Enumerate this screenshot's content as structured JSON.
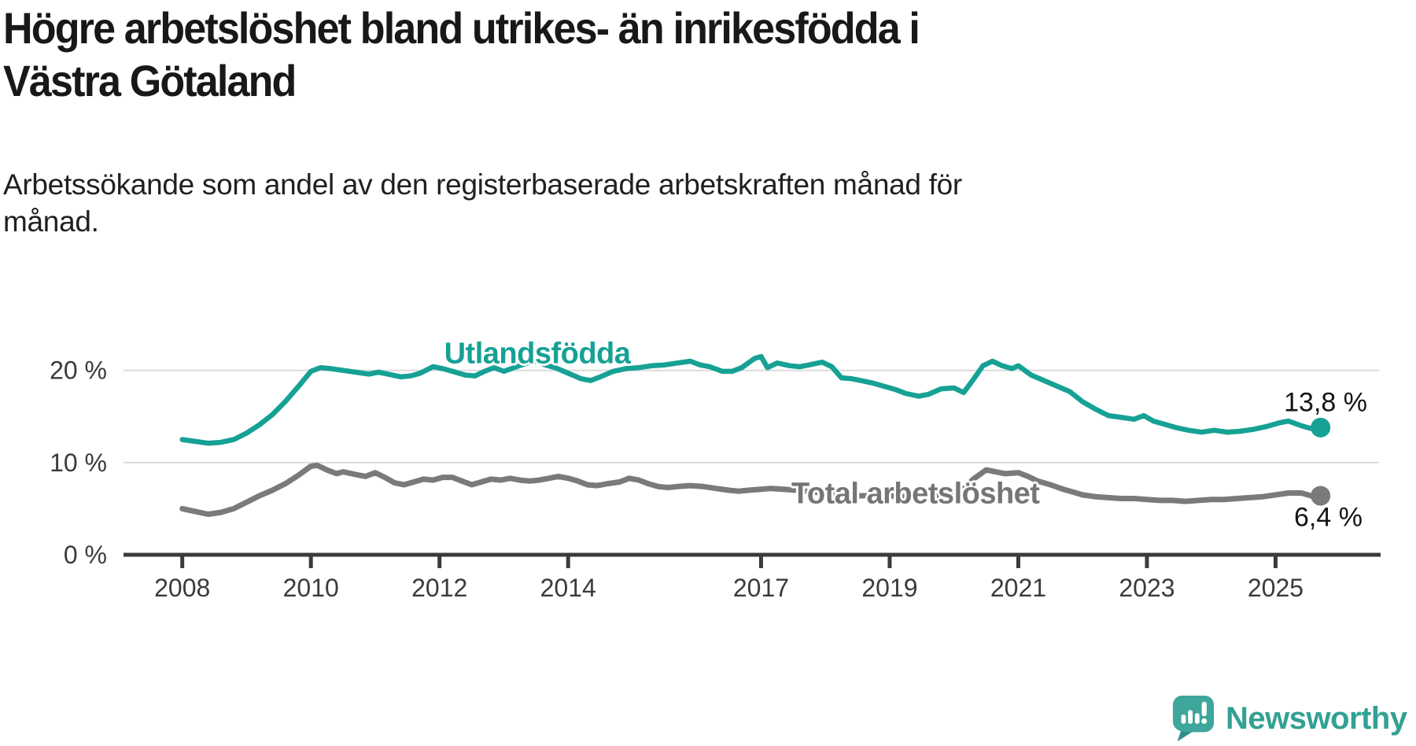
{
  "header": {
    "title_lines": [
      "Högre arbetslöshet bland utrikes- än inrikesfödda i",
      "Västra Götaland"
    ],
    "subtitle_lines": [
      "Arbetssökande som andel av den registerbaserade arbetskraften månad för",
      "månad."
    ]
  },
  "chart_data": {
    "type": "line",
    "title": "Högre arbetslöshet bland utrikes- än inrikesfödda i Västra Götaland",
    "subtitle": "Arbetssökande som andel av den registerbaserade arbetskraften månad för månad.",
    "unit": "%",
    "grid": true,
    "legend_position": "inline-labels",
    "x_axis": {
      "range": [
        2007.1,
        2026.6
      ],
      "ticks": [
        {
          "year": 2008,
          "label": "2008"
        },
        {
          "year": 2010,
          "label": "2010"
        },
        {
          "year": 2012,
          "label": "2012"
        },
        {
          "year": 2014,
          "label": "2014"
        },
        {
          "year": 2017,
          "label": "2017"
        },
        {
          "year": 2019,
          "label": "2019"
        },
        {
          "year": 2021,
          "label": "2021"
        },
        {
          "year": 2023,
          "label": "2023"
        },
        {
          "year": 2025,
          "label": "2025"
        }
      ]
    },
    "y_axis": {
      "range": [
        0,
        22.5
      ],
      "gridlines": [
        10,
        20
      ],
      "ticks": [
        {
          "value": 20,
          "label": "20 %"
        },
        {
          "value": 10,
          "label": "10 %"
        },
        {
          "value": 0,
          "label": "0 %"
        }
      ]
    },
    "series": [
      {
        "name": "Utlandsfödda",
        "color": "#16a195",
        "end_value": 13.8,
        "end_label": "13,8 %",
        "points": [
          [
            2008,
            12.5
          ],
          [
            2008.2,
            12.3
          ],
          [
            2008.4,
            12.1
          ],
          [
            2008.6,
            12.2
          ],
          [
            2008.8,
            12.5
          ],
          [
            2009,
            13.2
          ],
          [
            2009.2,
            14.1
          ],
          [
            2009.4,
            15.2
          ],
          [
            2009.6,
            16.6
          ],
          [
            2009.8,
            18.2
          ],
          [
            2010,
            19.9
          ],
          [
            2010.15,
            20.3
          ],
          [
            2010.3,
            20.2
          ],
          [
            2010.5,
            20
          ],
          [
            2010.7,
            19.8
          ],
          [
            2010.9,
            19.6
          ],
          [
            2011.05,
            19.8
          ],
          [
            2011.2,
            19.6
          ],
          [
            2011.4,
            19.3
          ],
          [
            2011.55,
            19.4
          ],
          [
            2011.7,
            19.7
          ],
          [
            2011.9,
            20.4
          ],
          [
            2012.05,
            20.2
          ],
          [
            2012.2,
            19.9
          ],
          [
            2012.4,
            19.5
          ],
          [
            2012.55,
            19.4
          ],
          [
            2012.7,
            19.9
          ],
          [
            2012.85,
            20.3
          ],
          [
            2013,
            19.9
          ],
          [
            2013.2,
            20.4
          ],
          [
            2013.4,
            20.9
          ],
          [
            2013.5,
            21
          ],
          [
            2013.65,
            20.6
          ],
          [
            2013.8,
            20.3
          ],
          [
            2014,
            19.7
          ],
          [
            2014.2,
            19.1
          ],
          [
            2014.35,
            18.9
          ],
          [
            2014.5,
            19.3
          ],
          [
            2014.7,
            19.9
          ],
          [
            2014.9,
            20.2
          ],
          [
            2015.1,
            20.3
          ],
          [
            2015.3,
            20.5
          ],
          [
            2015.5,
            20.6
          ],
          [
            2015.7,
            20.8
          ],
          [
            2015.9,
            21
          ],
          [
            2016.05,
            20.6
          ],
          [
            2016.2,
            20.4
          ],
          [
            2016.4,
            19.9
          ],
          [
            2016.55,
            19.9
          ],
          [
            2016.7,
            20.3
          ],
          [
            2016.9,
            21.3
          ],
          [
            2017,
            21.5
          ],
          [
            2017.1,
            20.3
          ],
          [
            2017.25,
            20.8
          ],
          [
            2017.45,
            20.5
          ],
          [
            2017.6,
            20.4
          ],
          [
            2017.75,
            20.6
          ],
          [
            2017.95,
            20.9
          ],
          [
            2018.1,
            20.4
          ],
          [
            2018.25,
            19.2
          ],
          [
            2018.4,
            19.1
          ],
          [
            2018.55,
            18.9
          ],
          [
            2018.75,
            18.6
          ],
          [
            2018.95,
            18.2
          ],
          [
            2019.1,
            17.9
          ],
          [
            2019.25,
            17.5
          ],
          [
            2019.45,
            17.2
          ],
          [
            2019.6,
            17.4
          ],
          [
            2019.8,
            18
          ],
          [
            2020,
            18.1
          ],
          [
            2020.15,
            17.6
          ],
          [
            2020.3,
            19
          ],
          [
            2020.45,
            20.5
          ],
          [
            2020.6,
            21
          ],
          [
            2020.75,
            20.5
          ],
          [
            2020.9,
            20.2
          ],
          [
            2021,
            20.5
          ],
          [
            2021.2,
            19.5
          ],
          [
            2021.4,
            18.9
          ],
          [
            2021.6,
            18.3
          ],
          [
            2021.8,
            17.7
          ],
          [
            2022,
            16.6
          ],
          [
            2022.2,
            15.8
          ],
          [
            2022.4,
            15.1
          ],
          [
            2022.6,
            14.9
          ],
          [
            2022.8,
            14.7
          ],
          [
            2022.95,
            15.1
          ],
          [
            2023.1,
            14.5
          ],
          [
            2023.3,
            14.1
          ],
          [
            2023.45,
            13.8
          ],
          [
            2023.65,
            13.5
          ],
          [
            2023.85,
            13.3
          ],
          [
            2024.05,
            13.5
          ],
          [
            2024.25,
            13.3
          ],
          [
            2024.45,
            13.4
          ],
          [
            2024.65,
            13.6
          ],
          [
            2024.85,
            13.9
          ],
          [
            2025.05,
            14.3
          ],
          [
            2025.2,
            14.5
          ],
          [
            2025.4,
            14
          ],
          [
            2025.55,
            13.7
          ],
          [
            2025.7,
            13.8
          ]
        ]
      },
      {
        "name": "Total arbetslöshet",
        "color": "#7a7a7a",
        "end_value": 6.4,
        "end_label": "6,4 %",
        "points": [
          [
            2008,
            5
          ],
          [
            2008.2,
            4.7
          ],
          [
            2008.4,
            4.4
          ],
          [
            2008.6,
            4.6
          ],
          [
            2008.8,
            5
          ],
          [
            2009,
            5.7
          ],
          [
            2009.2,
            6.4
          ],
          [
            2009.4,
            7
          ],
          [
            2009.6,
            7.7
          ],
          [
            2009.8,
            8.6
          ],
          [
            2010,
            9.6
          ],
          [
            2010.1,
            9.7
          ],
          [
            2010.25,
            9.2
          ],
          [
            2010.4,
            8.8
          ],
          [
            2010.5,
            9
          ],
          [
            2010.7,
            8.7
          ],
          [
            2010.85,
            8.5
          ],
          [
            2011,
            8.9
          ],
          [
            2011.15,
            8.4
          ],
          [
            2011.3,
            7.8
          ],
          [
            2011.45,
            7.6
          ],
          [
            2011.6,
            7.9
          ],
          [
            2011.75,
            8.2
          ],
          [
            2011.9,
            8.1
          ],
          [
            2012.05,
            8.4
          ],
          [
            2012.2,
            8.4
          ],
          [
            2012.35,
            8
          ],
          [
            2012.5,
            7.6
          ],
          [
            2012.65,
            7.9
          ],
          [
            2012.8,
            8.2
          ],
          [
            2012.95,
            8.1
          ],
          [
            2013.1,
            8.3
          ],
          [
            2013.25,
            8.1
          ],
          [
            2013.4,
            8
          ],
          [
            2013.55,
            8.1
          ],
          [
            2013.7,
            8.3
          ],
          [
            2013.85,
            8.5
          ],
          [
            2014,
            8.3
          ],
          [
            2014.15,
            8
          ],
          [
            2014.3,
            7.6
          ],
          [
            2014.45,
            7.5
          ],
          [
            2014.6,
            7.7
          ],
          [
            2014.8,
            7.9
          ],
          [
            2014.95,
            8.3
          ],
          [
            2015.1,
            8.1
          ],
          [
            2015.25,
            7.7
          ],
          [
            2015.4,
            7.4
          ],
          [
            2015.55,
            7.3
          ],
          [
            2015.7,
            7.4
          ],
          [
            2015.9,
            7.5
          ],
          [
            2016.1,
            7.4
          ],
          [
            2016.3,
            7.2
          ],
          [
            2016.5,
            7
          ],
          [
            2016.65,
            6.9
          ],
          [
            2016.8,
            7
          ],
          [
            2017,
            7.1
          ],
          [
            2017.15,
            7.2
          ],
          [
            2017.35,
            7.1
          ],
          [
            2017.55,
            7
          ],
          [
            2017.8,
            6.8
          ],
          [
            2018,
            6.7
          ],
          [
            2018.25,
            6.5
          ],
          [
            2018.5,
            6.4
          ],
          [
            2018.75,
            6.4
          ],
          [
            2019,
            6.4
          ],
          [
            2019.25,
            6.3
          ],
          [
            2019.5,
            6.4
          ],
          [
            2019.75,
            6.5
          ],
          [
            2020,
            6.7
          ],
          [
            2020.15,
            7.1
          ],
          [
            2020.3,
            8.2
          ],
          [
            2020.5,
            9.2
          ],
          [
            2020.65,
            9
          ],
          [
            2020.8,
            8.8
          ],
          [
            2021,
            8.9
          ],
          [
            2021.15,
            8.5
          ],
          [
            2021.3,
            8
          ],
          [
            2021.5,
            7.6
          ],
          [
            2021.7,
            7.1
          ],
          [
            2021.85,
            6.8
          ],
          [
            2022,
            6.5
          ],
          [
            2022.2,
            6.3
          ],
          [
            2022.4,
            6.2
          ],
          [
            2022.6,
            6.1
          ],
          [
            2022.8,
            6.1
          ],
          [
            2023,
            6
          ],
          [
            2023.2,
            5.9
          ],
          [
            2023.4,
            5.9
          ],
          [
            2023.6,
            5.8
          ],
          [
            2023.8,
            5.9
          ],
          [
            2024,
            6
          ],
          [
            2024.2,
            6
          ],
          [
            2024.4,
            6.1
          ],
          [
            2024.6,
            6.2
          ],
          [
            2024.8,
            6.3
          ],
          [
            2025,
            6.5
          ],
          [
            2025.2,
            6.7
          ],
          [
            2025.4,
            6.7
          ],
          [
            2025.55,
            6.4
          ],
          [
            2025.7,
            6.4
          ]
        ]
      }
    ],
    "colors": {
      "accent_teal": "#16a195",
      "series_gray": "#7a7a7a",
      "axis": "#3b3b3b",
      "gridline": "#dcdcdc",
      "logo_teal": "#3ea69b"
    }
  },
  "branding": {
    "logo_text": "Newsworthy",
    "icon": "newsworthy-speech-bubble-chart-icon"
  }
}
